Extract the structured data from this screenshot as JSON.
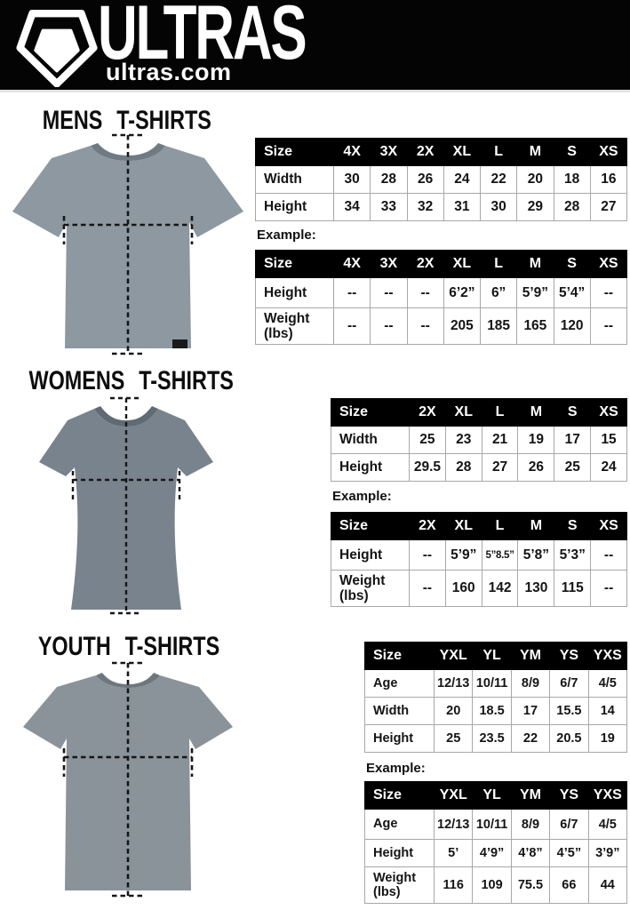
{
  "header": {
    "brand": "ULTRAS",
    "site": "ultras.com",
    "bg_color": "#040404"
  },
  "colors": {
    "mens_shirt": "#8d98a1",
    "mens_collar": "#6f7a83",
    "womens_shirt": "#78838d",
    "womens_collar": "#5f6a74",
    "youth_shirt": "#8a929a",
    "youth_collar": "#6e767e",
    "measure_line": "#161616"
  },
  "sections": {
    "mens": {
      "title": "MENS T-SHIRTS",
      "example_label": "Example:",
      "size_table": {
        "header": [
          "Size",
          "4X",
          "3X",
          "2X",
          "XL",
          "L",
          "M",
          "S",
          "XS"
        ],
        "rows": [
          {
            "label": "Width",
            "values": [
              "30",
              "28",
              "26",
              "24",
              "22",
              "20",
              "18",
              "16"
            ]
          },
          {
            "label": "Height",
            "values": [
              "34",
              "33",
              "32",
              "31",
              "30",
              "29",
              "28",
              "27"
            ]
          }
        ]
      },
      "example_table": {
        "header": [
          "Size",
          "4X",
          "3X",
          "2X",
          "XL",
          "L",
          "M",
          "S",
          "XS"
        ],
        "rows": [
          {
            "label": "Height",
            "values": [
              "--",
              "--",
              "--",
              "6’2”",
              "6”",
              "5’9”",
              "5’4”",
              "--"
            ]
          },
          {
            "label": "Weight\n(lbs)",
            "values": [
              "--",
              "--",
              "--",
              "205",
              "185",
              "165",
              "120",
              "--"
            ]
          }
        ]
      }
    },
    "womens": {
      "title": "WOMENS T-SHIRTS",
      "example_label": "Example:",
      "size_table": {
        "header": [
          "Size",
          "2X",
          "XL",
          "L",
          "M",
          "S",
          "XS"
        ],
        "rows": [
          {
            "label": "Width",
            "values": [
              "25",
              "23",
              "21",
              "19",
              "17",
              "15"
            ]
          },
          {
            "label": "Height",
            "values": [
              "29.5",
              "28",
              "27",
              "26",
              "25",
              "24"
            ]
          }
        ]
      },
      "example_table": {
        "header": [
          "Size",
          "2X",
          "XL",
          "L",
          "M",
          "S",
          "XS"
        ],
        "rows": [
          {
            "label": "Height",
            "values": [
              "--",
              "5’9”",
              "5”8.5”",
              "5’8”",
              "5’3”",
              "--"
            ]
          },
          {
            "label": "Weight\n(lbs)",
            "values": [
              "--",
              "160",
              "142",
              "130",
              "115",
              "--"
            ]
          }
        ]
      }
    },
    "youth": {
      "title": "YOUTH T-SHIRTS",
      "example_label": "Example:",
      "size_table": {
        "header": [
          "Size",
          "YXL",
          "YL",
          "YM",
          "YS",
          "YXS"
        ],
        "rows": [
          {
            "label": "Age",
            "values": [
              "12/13",
              "10/11",
              "8/9",
              "6/7",
              "4/5"
            ]
          },
          {
            "label": "Width",
            "values": [
              "20",
              "18.5",
              "17",
              "15.5",
              "14"
            ]
          },
          {
            "label": "Height",
            "values": [
              "25",
              "23.5",
              "22",
              "20.5",
              "19"
            ]
          }
        ]
      },
      "example_table": {
        "header": [
          "Size",
          "YXL",
          "YL",
          "YM",
          "YS",
          "YXS"
        ],
        "rows": [
          {
            "label": "Age",
            "values": [
              "12/13",
              "10/11",
              "8/9",
              "6/7",
              "4/5"
            ]
          },
          {
            "label": "Height",
            "values": [
              "5’",
              "4’9”",
              "4’8”",
              "4’5”",
              "3’9”"
            ]
          },
          {
            "label": "Weight\n(lbs)",
            "values": [
              "116",
              "109",
              "75.5",
              "66",
              "44"
            ]
          }
        ]
      }
    }
  }
}
